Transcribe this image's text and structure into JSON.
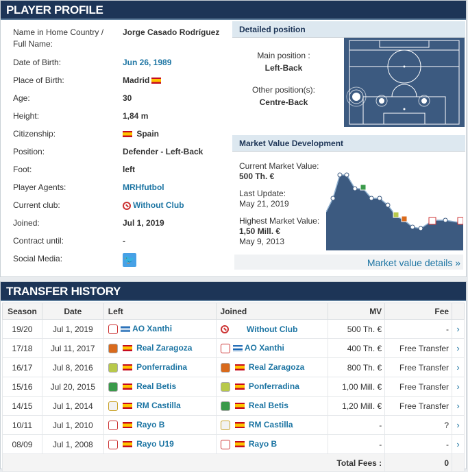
{
  "profile": {
    "title": "PLAYER PROFILE",
    "rows": [
      {
        "label": "Name in Home Country / Full Name:",
        "value": "Jorge Casado Rodríguez"
      },
      {
        "label": "Date of Birth:",
        "value": "Jun 26, 1989"
      },
      {
        "label": "Place of Birth:",
        "value": "Madrid"
      },
      {
        "label": "Age:",
        "value": "30"
      },
      {
        "label": "Height:",
        "value": "1,84 m"
      },
      {
        "label": "Citizenship:",
        "value": "Spain"
      },
      {
        "label": "Position:",
        "value": "Defender - Left-Back"
      },
      {
        "label": "Foot:",
        "value": "left"
      },
      {
        "label": "Player Agents:",
        "value": "MRHfutbol"
      },
      {
        "label": "Current club:",
        "value": "Without Club"
      },
      {
        "label": "Joined:",
        "value": "Jul 1, 2019"
      },
      {
        "label": "Contract until:",
        "value": "-"
      },
      {
        "label": "Social Media:",
        "value": ""
      }
    ]
  },
  "position": {
    "title": "Detailed position",
    "main_label": "Main position :",
    "main_value": "Left-Back",
    "other_label": "Other position(s):",
    "other_value": "Centre-Back"
  },
  "market": {
    "title": "Market Value Development",
    "current_label": "Current Market Value:",
    "current_value": "500 Th. €",
    "update_label": "Last Update:",
    "update_value": "May 21, 2019",
    "highest_label": "Highest Market Value:",
    "highest_value": "1,50 Mill. €",
    "highest_date": "May 9, 2013",
    "details_link": "Market value details »"
  },
  "transfers": {
    "title": "TRANSFER HISTORY",
    "headers": {
      "season": "Season",
      "date": "Date",
      "left": "Left",
      "joined": "Joined",
      "mv": "MV",
      "fee": "Fee"
    },
    "rows": [
      {
        "season": "19/20",
        "date": "Jul 1, 2019",
        "left": "AO Xanthi",
        "joined": "Without Club",
        "mv": "500 Th. €",
        "fee": "-"
      },
      {
        "season": "17/18",
        "date": "Jul 11, 2017",
        "left": "Real Zaragoza",
        "joined": "AO Xanthi",
        "mv": "400 Th. €",
        "fee": "Free Transfer"
      },
      {
        "season": "16/17",
        "date": "Jul 8, 2016",
        "left": "Ponferradina",
        "joined": "Real Zaragoza",
        "mv": "800 Th. €",
        "fee": "Free Transfer"
      },
      {
        "season": "15/16",
        "date": "Jul 20, 2015",
        "left": "Real Betis",
        "joined": "Ponferradina",
        "mv": "1,00 Mill. €",
        "fee": "Free Transfer"
      },
      {
        "season": "14/15",
        "date": "Jul 1, 2014",
        "left": "RM Castilla",
        "joined": "Real Betis",
        "mv": "1,20 Mill. €",
        "fee": "Free Transfer"
      },
      {
        "season": "10/11",
        "date": "Jul 1, 2010",
        "left": "Rayo B",
        "joined": "RM Castilla",
        "mv": "-",
        "fee": "?"
      },
      {
        "season": "08/09",
        "date": "Jul 1, 2008",
        "left": "Rayo U19",
        "joined": "Rayo B",
        "mv": "-",
        "fee": "-"
      }
    ],
    "total_label": "Total Fees :",
    "total_value": "0"
  },
  "colors": {
    "header_bg": "#1d3557",
    "link": "#1d75a3",
    "pitch": "#3c5a80"
  }
}
